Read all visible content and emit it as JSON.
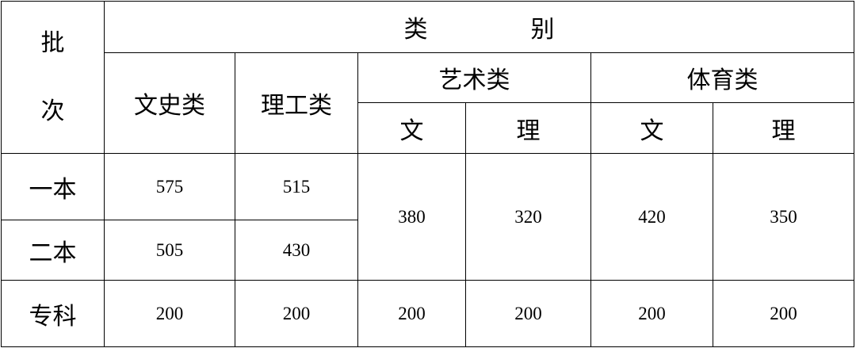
{
  "header": {
    "batch_label_top": "批",
    "batch_label_bottom": "次",
    "category_left": "类",
    "category_right": "别",
    "columns": {
      "wenshi": "文史类",
      "ligong": "理工类",
      "yishu": "艺术类",
      "tiyu": "体育类",
      "yishu_wen": "文",
      "yishu_li": "理",
      "tiyu_wen": "文",
      "tiyu_li": "理"
    }
  },
  "rows": [
    {
      "batch": "一本",
      "wenshi": "575",
      "ligong": "515"
    },
    {
      "batch": "二本",
      "wenshi": "505",
      "ligong": "430"
    },
    {
      "batch": "专科",
      "wenshi": "200",
      "ligong": "200",
      "yishu_wen": "200",
      "yishu_li": "200",
      "tiyu_wen": "200",
      "tiyu_li": "200"
    }
  ],
  "merged": {
    "yishu_wen": "380",
    "yishu_li": "320",
    "tiyu_wen": "420",
    "tiyu_li": "350"
  }
}
